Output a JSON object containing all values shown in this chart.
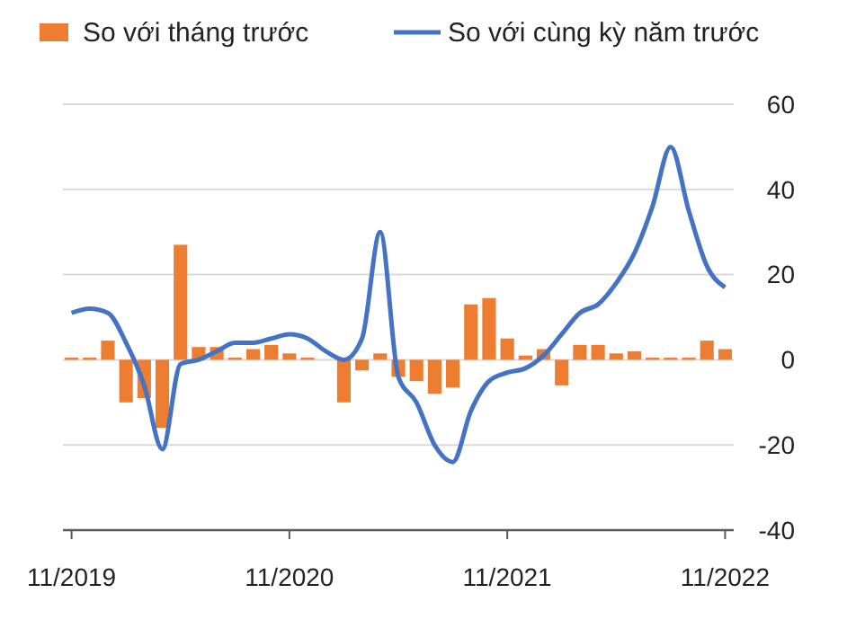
{
  "chart_data": {
    "type": "bar",
    "categories": [
      "11/2019",
      null,
      null,
      null,
      null,
      null,
      null,
      null,
      null,
      null,
      null,
      null,
      "11/2020",
      null,
      null,
      null,
      null,
      null,
      null,
      null,
      null,
      null,
      null,
      null,
      "11/2021",
      null,
      null,
      null,
      null,
      null,
      null,
      null,
      null,
      null,
      null,
      null,
      "11/2022"
    ],
    "series": [
      {
        "name": "So với tháng trước",
        "color": "#ed7d31",
        "values": [
          0.5,
          0.5,
          4.5,
          -10,
          -9,
          -16,
          27,
          3,
          3,
          0.5,
          2.5,
          3.5,
          1.5,
          0.5,
          0,
          -10,
          -2.5,
          1.5,
          -4,
          -5,
          -8,
          -6.5,
          13,
          14.5,
          5,
          1,
          2.5,
          -6,
          3.5,
          3.5,
          1.5,
          2,
          0.5,
          0.5,
          0.5,
          4.5,
          2.5
        ]
      },
      {
        "name": "So với cùng kỳ năm trước",
        "type": "line",
        "color": "#4472c4",
        "values": [
          11,
          12,
          11,
          4,
          -6,
          -21,
          -1,
          0,
          2,
          4,
          4,
          5,
          6,
          5,
          2,
          0,
          5,
          30,
          -4,
          -10,
          -20,
          -24,
          -12,
          -5,
          -3,
          -2,
          1,
          6,
          11,
          13,
          18,
          25,
          36,
          50,
          35,
          22,
          17
        ]
      }
    ],
    "ylim": [
      -40,
      60
    ],
    "yticks": [
      -40,
      -20,
      0,
      20,
      40,
      60
    ],
    "grid": "y",
    "legend": "top"
  }
}
